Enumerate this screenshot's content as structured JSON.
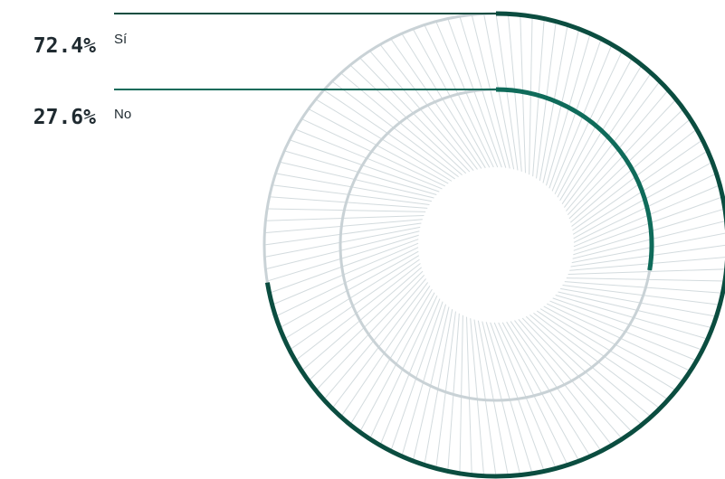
{
  "chart_data": {
    "type": "radial-bar",
    "series": [
      {
        "label": "Sí",
        "value_text": "72.4%",
        "value": 72.4,
        "color": "#0b4d40"
      },
      {
        "label": "No",
        "value_text": "27.6%",
        "value": 27.6,
        "color": "#0f6b5a"
      }
    ],
    "track_color": "#c9d2d6",
    "spoke_color": "#d3dbde",
    "legend_placement": "top-left"
  }
}
